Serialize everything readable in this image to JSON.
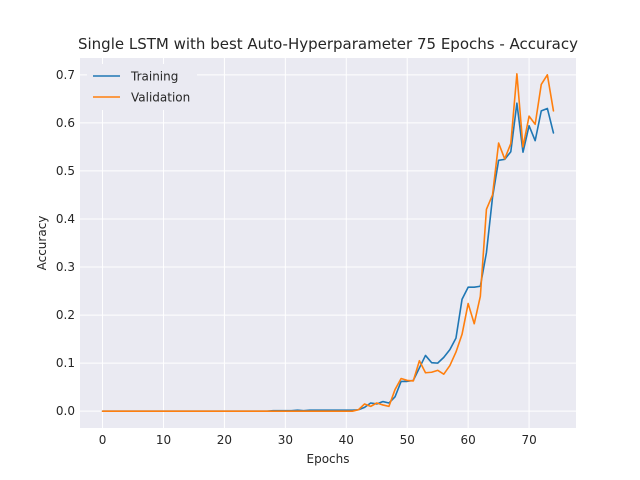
{
  "chart_data": {
    "type": "line",
    "title": "Single LSTM with best Auto-Hyperparameter 75 Epochs - Accuracy",
    "xlabel": "Epochs",
    "ylabel": "Accuracy",
    "xlim": [
      -3.7,
      77.7
    ],
    "ylim": [
      -0.035,
      0.735
    ],
    "xticks": [
      0,
      10,
      20,
      30,
      40,
      50,
      60,
      70
    ],
    "yticks": [
      0.0,
      0.1,
      0.2,
      0.3,
      0.4,
      0.5,
      0.6,
      0.7
    ],
    "ytick_labels": [
      "0.0",
      "0.1",
      "0.2",
      "0.3",
      "0.4",
      "0.5",
      "0.6",
      "0.7"
    ],
    "grid": true,
    "background": "#eaeaf2",
    "legend_position": "upper-left",
    "x": [
      0,
      1,
      2,
      3,
      4,
      5,
      6,
      7,
      8,
      9,
      10,
      11,
      12,
      13,
      14,
      15,
      16,
      17,
      18,
      19,
      20,
      21,
      22,
      23,
      24,
      25,
      26,
      27,
      28,
      29,
      30,
      31,
      32,
      33,
      34,
      35,
      36,
      37,
      38,
      39,
      40,
      41,
      42,
      43,
      44,
      45,
      46,
      47,
      48,
      49,
      50,
      51,
      52,
      53,
      54,
      55,
      56,
      57,
      58,
      59,
      60,
      61,
      62,
      63,
      64,
      65,
      66,
      67,
      68,
      69,
      70,
      71,
      72,
      73,
      74
    ],
    "series": [
      {
        "name": "Training",
        "color": "#1f77b4",
        "values": [
          0.0,
          0.0,
          0.0,
          0.0,
          0.0,
          0.0,
          0.0,
          0.0,
          0.0,
          0.0,
          0.0,
          0.0,
          0.0,
          0.0,
          0.0,
          0.0,
          0.0,
          0.0,
          0.0,
          0.0,
          0.0,
          0.0,
          0.0,
          0.0,
          0.0,
          0.0,
          0.0,
          0.0,
          0.001,
          0.001,
          0.001,
          0.001,
          0.002,
          0.001,
          0.002,
          0.002,
          0.002,
          0.002,
          0.002,
          0.002,
          0.002,
          0.002,
          0.003,
          0.008,
          0.017,
          0.015,
          0.02,
          0.017,
          0.03,
          0.062,
          0.062,
          0.064,
          0.09,
          0.116,
          0.101,
          0.1,
          0.112,
          0.128,
          0.152,
          0.233,
          0.258,
          0.258,
          0.26,
          0.33,
          0.445,
          0.522,
          0.524,
          0.54,
          0.641,
          0.539,
          0.594,
          0.563,
          0.625,
          0.63,
          0.579
        ]
      },
      {
        "name": "Validation",
        "color": "#ff7f0e",
        "values": [
          0.0,
          0.0,
          0.0,
          0.0,
          0.0,
          0.0,
          0.0,
          0.0,
          0.0,
          0.0,
          0.0,
          0.0,
          0.0,
          0.0,
          0.0,
          0.0,
          0.0,
          0.0,
          0.0,
          0.0,
          0.0,
          0.0,
          0.0,
          0.0,
          0.0,
          0.0,
          0.0,
          0.0,
          0.0,
          0.0,
          0.0,
          0.0,
          0.0,
          0.0,
          0.0,
          0.0,
          0.0,
          0.0,
          0.0,
          0.0,
          0.0,
          0.0,
          0.003,
          0.015,
          0.01,
          0.017,
          0.013,
          0.01,
          0.045,
          0.068,
          0.064,
          0.063,
          0.105,
          0.08,
          0.081,
          0.085,
          0.077,
          0.095,
          0.123,
          0.16,
          0.224,
          0.182,
          0.239,
          0.42,
          0.45,
          0.558,
          0.525,
          0.557,
          0.702,
          0.55,
          0.614,
          0.597,
          0.68,
          0.7,
          0.625
        ]
      }
    ]
  }
}
